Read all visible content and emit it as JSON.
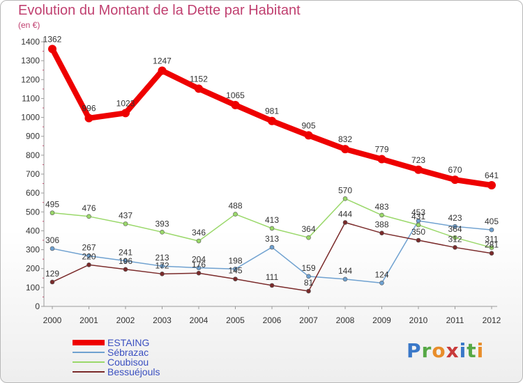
{
  "title": "Evolution du Montant de la Dette par Habitant",
  "unit": "(en €)",
  "logo_text": "Proxiti",
  "chart_data": {
    "type": "line",
    "title": "Evolution du Montant de la Dette par Habitant",
    "ylabel": "(en €)",
    "xlabel": "",
    "x": [
      "2000",
      "2001",
      "2002",
      "2003",
      "2004",
      "2005",
      "2006",
      "2007",
      "2008",
      "2009",
      "2010",
      "2011",
      "2012"
    ],
    "ylim": [
      0,
      1400
    ],
    "yticks": [
      0,
      100,
      200,
      300,
      400,
      500,
      600,
      700,
      800,
      900,
      1000,
      1100,
      1200,
      1300,
      1400
    ],
    "grid": false,
    "legend_position": "bottom-left",
    "series": [
      {
        "name": "ESTAING",
        "color": "#ee0000",
        "values": [
          1362,
          996,
          1023,
          1247,
          1152,
          1065,
          981,
          905,
          832,
          779,
          723,
          670,
          641
        ],
        "labels": [
          "1362",
          "996",
          "1023",
          "1247",
          "1152",
          "1065",
          "981",
          "905",
          "832",
          "779",
          "723",
          "670",
          "641"
        ]
      },
      {
        "name": "Sébrazac",
        "color": "#6fa1d0",
        "values": [
          306,
          267,
          241,
          213,
          204,
          198,
          313,
          159,
          144,
          124,
          453,
          423,
          405
        ],
        "labels": [
          "306",
          "267",
          "241",
          "213",
          "204",
          "198",
          "313",
          "159",
          "144",
          "124",
          "453",
          "423",
          "405"
        ]
      },
      {
        "name": "Coubisou",
        "color": "#9ad86a",
        "values": [
          495,
          476,
          437,
          393,
          346,
          488,
          413,
          364,
          570,
          483,
          431,
          364,
          311
        ],
        "labels": [
          "495",
          "476",
          "437",
          "393",
          "346",
          "488",
          "413",
          "364",
          "570",
          "483",
          "431",
          "364",
          "311"
        ]
      },
      {
        "name": "Bessuéjouls",
        "color": "#7a2a2a",
        "values": [
          129,
          220,
          196,
          172,
          176,
          145,
          111,
          81,
          444,
          388,
          350,
          312,
          281
        ],
        "labels": [
          "129",
          "220",
          "196",
          "172",
          "176",
          "145",
          "111",
          "81",
          "444",
          "388",
          "350",
          "312",
          "281"
        ]
      }
    ]
  }
}
